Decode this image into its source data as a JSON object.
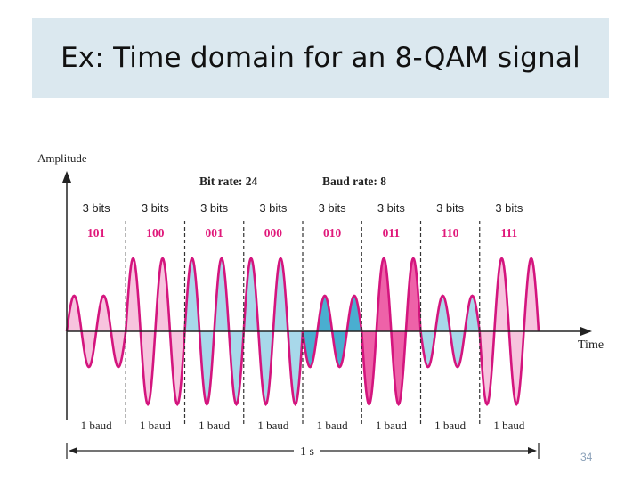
{
  "slide": {
    "title": "Ex: Time domain for an 8-QAM signal",
    "number": "34"
  },
  "diagram": {
    "y_axis_label": "Amplitude",
    "x_axis_label": "Time",
    "bit_rate_label": "Bit rate: 24",
    "baud_rate_label": "Baud rate: 8",
    "duration_label": "1 s",
    "segments": [
      {
        "bits_label": "3 bits",
        "code": "101",
        "baud_label": "1 baud",
        "amplitude": "low",
        "phase": 0,
        "fill": "pink"
      },
      {
        "bits_label": "3 bits",
        "code": "100",
        "baud_label": "1 baud",
        "amplitude": "high",
        "phase": 0,
        "fill": "pink"
      },
      {
        "bits_label": "3 bits",
        "code": "001",
        "baud_label": "1 baud",
        "amplitude": "high",
        "phase": 0,
        "fill": "blue"
      },
      {
        "bits_label": "3 bits",
        "code": "000",
        "baud_label": "1 baud",
        "amplitude": "high",
        "phase": 0,
        "fill": "blue"
      },
      {
        "bits_label": "3 bits",
        "code": "010",
        "baud_label": "1 baud",
        "amplitude": "low",
        "phase": 180,
        "fill": "teal"
      },
      {
        "bits_label": "3 bits",
        "code": "011",
        "baud_label": "1 baud",
        "amplitude": "high",
        "phase": 180,
        "fill": "magenta"
      },
      {
        "bits_label": "3 bits",
        "code": "110",
        "baud_label": "1 baud",
        "amplitude": "low",
        "phase": 180,
        "fill": "blue"
      },
      {
        "bits_label": "3 bits",
        "code": "111",
        "baud_label": "1 baud",
        "amplitude": "high",
        "phase": 180,
        "fill": "pink"
      }
    ],
    "colors": {
      "wave_stroke": "#d4157e",
      "code_text": "#e0187a",
      "pink": "#f7c4de",
      "blue": "#a8d8ea",
      "teal": "#4aaed0",
      "magenta": "#ee62a8",
      "title_bar": "#dbe8ef"
    }
  }
}
